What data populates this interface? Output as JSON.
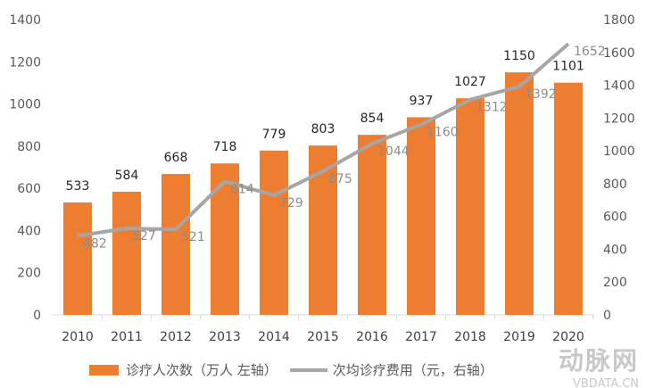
{
  "chart_data": {
    "type": "bar+line",
    "categories": [
      "2010",
      "2011",
      "2012",
      "2013",
      "2014",
      "2015",
      "2016",
      "2017",
      "2018",
      "2019",
      "2020"
    ],
    "series": [
      {
        "name": "诊疗人次数（万人 左轴）",
        "type": "bar",
        "axis": "left",
        "color": "#ed7d31",
        "values": [
          533,
          584,
          668,
          718,
          779,
          803,
          854,
          937,
          1027,
          1150,
          1101
        ]
      },
      {
        "name": "次均诊疗费用（元，右轴）",
        "type": "line",
        "axis": "right",
        "color": "#a6a6a6",
        "values": [
          482,
          527,
          521,
          814,
          729,
          875,
          1044,
          1160,
          1312,
          1392,
          1652
        ]
      }
    ],
    "ylim_left": [
      0,
      1400
    ],
    "yticks_left": [
      "0",
      "200",
      "400",
      "600",
      "800",
      "1000",
      "1200",
      "1400"
    ],
    "ylim_right": [
      0,
      1800
    ],
    "yticks_right": [
      "0",
      "200",
      "400",
      "600",
      "800",
      "1000",
      "1200",
      "1400",
      "1600",
      "1800"
    ],
    "grid": false,
    "legend": "bottom"
  },
  "watermark": {
    "logo": "动脉网",
    "site": "VBDATA.CN"
  }
}
